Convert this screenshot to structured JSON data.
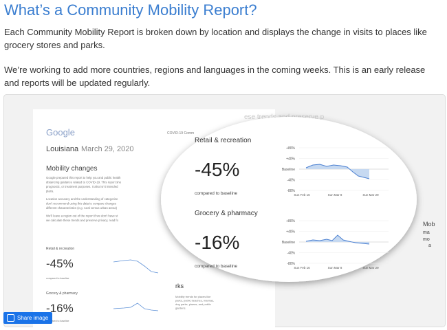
{
  "heading": "What’s a Community Mobility Report?",
  "paragraphs": [
    "Each Community Mobility Report is broken down by location and displays the change in visits to places like grocery stores and parks.",
    "We’re working to add more countries, regions and languages in the coming weeks. This is an early release and reports will be updated regularly."
  ],
  "report": {
    "logo": "Google",
    "header_fragment": "COVID-19 Comm",
    "faded_fragment": "ese trends and preserve p",
    "location": "Louisiana",
    "date": "March 29, 2020",
    "section": "Mobility changes",
    "body_lines": [
      "Google prepared this report to help you and public health",
      "distancing guidance related to COVID-19. This report sho",
      "prognostic, or treatment purposes. It also isn't intended",
      "plans.",
      "Location accuracy and the understanding of categorize",
      "don't recommend using this data to compare changes",
      "different characteristics (e.g. rural versus urban areas)",
      "We'll leave a region out of the report if we don't have st",
      "we calculate these trends and preserve privacy, read fo"
    ],
    "cards": [
      {
        "label": "Retail & recreation",
        "value": "-45%",
        "caption": "compared to baseline"
      },
      {
        "label": "Grocery & pharmacy",
        "value": "-16%",
        "caption": "compared to baseline"
      }
    ],
    "axis_labels": [
      "+80%",
      "+40%",
      "Baseline",
      "-40%",
      "-80%"
    ],
    "date_labels": [
      "Sun Feb 16",
      "Sun Mar 8",
      "Sun Mar 29"
    ],
    "parks_fragment": "rks",
    "parks_lines": [
      "Mobility trends for places like",
      "parks, public beaches, marinas,",
      "dog parks, plazas, and public",
      "gardens."
    ],
    "right_fragments": [
      "Mob",
      "ma",
      "mo",
      "a"
    ]
  },
  "share_button": "Share image"
}
